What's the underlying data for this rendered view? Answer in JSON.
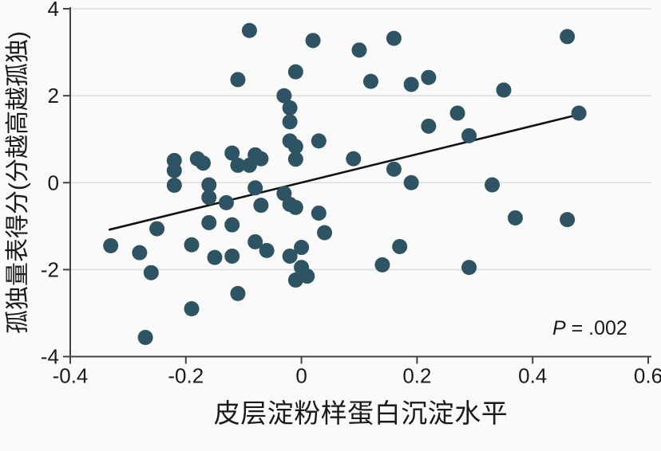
{
  "figure": {
    "annotation": {
      "p_label": "P",
      "p_rest": " = .002"
    }
  },
  "chart_data": {
    "type": "scatter",
    "title": "",
    "xlabel": "皮层淀粉样蛋白沉淀水平",
    "ylabel": "孤独量表得分(分越高越孤独)",
    "xlim": [
      -0.4,
      0.6
    ],
    "ylim": [
      -4,
      4
    ],
    "x_ticks": [
      {
        "v": -0.4,
        "label": "-0.4"
      },
      {
        "v": -0.2,
        "label": "-0.2"
      },
      {
        "v": 0,
        "label": "0"
      },
      {
        "v": 0.2,
        "label": "0.2"
      },
      {
        "v": 0.4,
        "label": "0.4"
      },
      {
        "v": 0.6,
        "label": "0.6"
      }
    ],
    "y_ticks": [
      {
        "v": 4,
        "label": "4"
      },
      {
        "v": 2,
        "label": "2"
      },
      {
        "v": 0,
        "label": "0"
      },
      {
        "v": -2,
        "label": "-2"
      },
      {
        "v": -4,
        "label": "-4"
      }
    ],
    "grid": "horizontal-only",
    "gridlines_y": [
      4,
      2,
      0,
      -2
    ],
    "legend": "none",
    "points": [
      [
        -0.09,
        3.5
      ],
      [
        0.02,
        3.27
      ],
      [
        0.1,
        3.05
      ],
      [
        0.16,
        3.32
      ],
      [
        0.46,
        3.36
      ],
      [
        -0.11,
        2.37
      ],
      [
        -0.01,
        2.55
      ],
      [
        0.12,
        2.33
      ],
      [
        0.19,
        2.26
      ],
      [
        0.22,
        2.42
      ],
      [
        0.35,
        2.13
      ],
      [
        -0.03,
        2.0
      ],
      [
        -0.02,
        1.72
      ],
      [
        -0.02,
        1.4
      ],
      [
        0.27,
        1.6
      ],
      [
        0.48,
        1.6
      ],
      [
        0.22,
        1.3
      ],
      [
        0.29,
        1.08
      ],
      [
        -0.22,
        0.51
      ],
      [
        -0.22,
        0.28
      ],
      [
        -0.18,
        0.55
      ],
      [
        -0.17,
        0.45
      ],
      [
        -0.12,
        0.68
      ],
      [
        -0.11,
        0.4
      ],
      [
        -0.09,
        0.4
      ],
      [
        -0.08,
        0.64
      ],
      [
        -0.07,
        0.55
      ],
      [
        -0.02,
        0.96
      ],
      [
        -0.01,
        0.83
      ],
      [
        -0.01,
        0.54
      ],
      [
        0.03,
        0.96
      ],
      [
        0.09,
        0.55
      ],
      [
        0.16,
        0.31
      ],
      [
        0.19,
        0.0
      ],
      [
        0.33,
        -0.05
      ],
      [
        -0.22,
        -0.06
      ],
      [
        -0.16,
        -0.05
      ],
      [
        -0.16,
        -0.34
      ],
      [
        -0.13,
        -0.46
      ],
      [
        -0.08,
        -0.12
      ],
      [
        -0.07,
        -0.52
      ],
      [
        -0.03,
        -0.25
      ],
      [
        -0.02,
        -0.5
      ],
      [
        -0.01,
        -0.57
      ],
      [
        0.03,
        -0.7
      ],
      [
        0.37,
        -0.81
      ],
      [
        0.46,
        -0.85
      ],
      [
        -0.16,
        -0.92
      ],
      [
        -0.12,
        -0.97
      ],
      [
        -0.25,
        -1.06
      ],
      [
        0.04,
        -1.15
      ],
      [
        -0.33,
        -1.45
      ],
      [
        -0.28,
        -1.61
      ],
      [
        -0.19,
        -1.43
      ],
      [
        -0.15,
        -1.72
      ],
      [
        -0.12,
        -1.69
      ],
      [
        -0.08,
        -1.36
      ],
      [
        -0.06,
        -1.56
      ],
      [
        -0.02,
        -1.69
      ],
      [
        0.0,
        -1.49
      ],
      [
        0.0,
        -1.95
      ],
      [
        0.01,
        -2.15
      ],
      [
        -0.01,
        -2.24
      ],
      [
        -0.26,
        -2.07
      ],
      [
        -0.11,
        -2.55
      ],
      [
        -0.19,
        -2.9
      ],
      [
        -0.27,
        -3.56
      ],
      [
        0.17,
        -1.47
      ],
      [
        0.14,
        -1.89
      ],
      [
        0.29,
        -1.95
      ]
    ],
    "trend_line": {
      "x1": -0.332,
      "y1": -1.08,
      "x2": 0.484,
      "y2": 1.58
    },
    "annotation": {
      "text": "P = .002",
      "x": 0.43,
      "y": -3.34
    },
    "colors": {
      "point": "#2e5363",
      "trend_line": "#131313",
      "gridline": "#d9dcdc",
      "axis": "#3f4445",
      "text": "#1a1a1a",
      "background": "#fafafa"
    }
  }
}
